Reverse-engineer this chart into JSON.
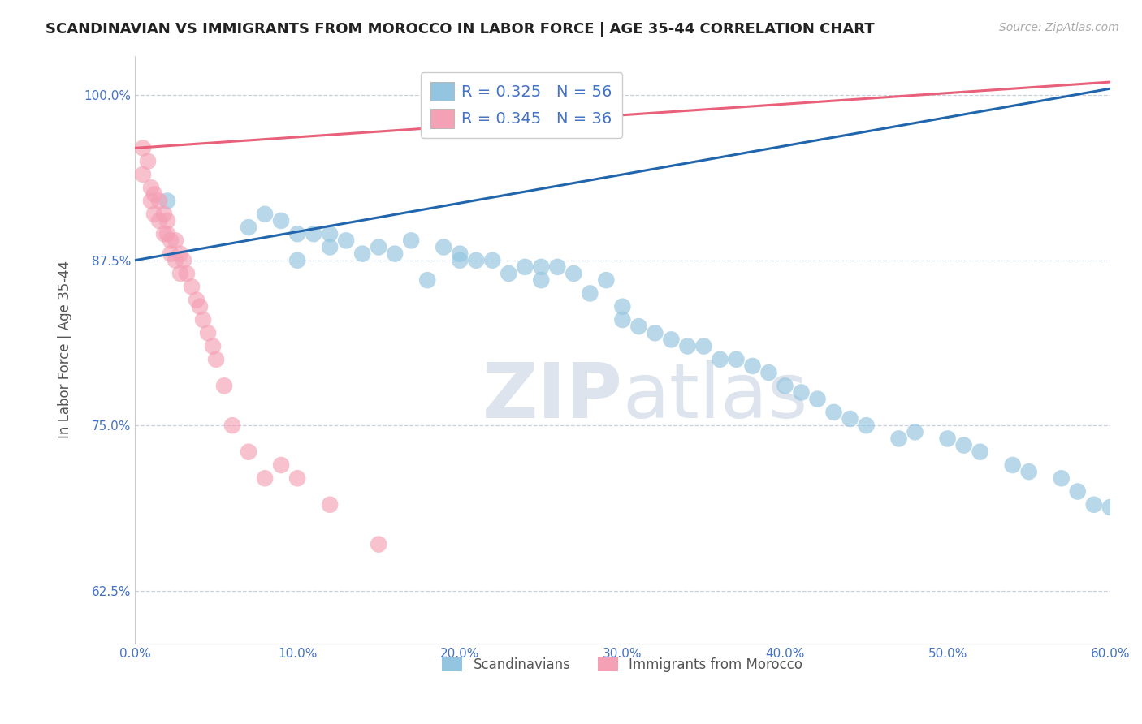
{
  "title": "SCANDINAVIAN VS IMMIGRANTS FROM MOROCCO IN LABOR FORCE | AGE 35-44 CORRELATION CHART",
  "source": "Source: ZipAtlas.com",
  "ylabel": "In Labor Force | Age 35-44",
  "xlim": [
    0.0,
    0.6
  ],
  "ylim": [
    0.585,
    1.03
  ],
  "yticks": [
    0.625,
    0.75,
    0.875,
    1.0
  ],
  "ytick_labels": [
    "62.5%",
    "75.0%",
    "87.5%",
    "100.0%"
  ],
  "xticks": [
    0.0,
    0.1,
    0.2,
    0.3,
    0.4,
    0.5,
    0.6
  ],
  "xtick_labels": [
    "0.0%",
    "10.0%",
    "20.0%",
    "30.0%",
    "40.0%",
    "50.0%",
    "60.0%"
  ],
  "blue_R": 0.325,
  "blue_N": 56,
  "pink_R": 0.345,
  "pink_N": 36,
  "blue_color": "#93c4e0",
  "pink_color": "#f4a0b5",
  "blue_line_color": "#2166ac",
  "pink_line_color": "#e8607a",
  "tick_color": "#4472c4",
  "grid_color": "#c8d0dc",
  "title_color": "#222222",
  "watermark_color": "#dde4ee",
  "blue_x": [
    0.02,
    0.07,
    0.08,
    0.09,
    0.1,
    0.1,
    0.11,
    0.12,
    0.12,
    0.13,
    0.14,
    0.15,
    0.16,
    0.17,
    0.18,
    0.19,
    0.2,
    0.2,
    0.21,
    0.22,
    0.23,
    0.24,
    0.25,
    0.25,
    0.26,
    0.27,
    0.28,
    0.29,
    0.3,
    0.3,
    0.31,
    0.32,
    0.33,
    0.34,
    0.35,
    0.36,
    0.37,
    0.38,
    0.39,
    0.4,
    0.41,
    0.42,
    0.43,
    0.44,
    0.45,
    0.47,
    0.48,
    0.5,
    0.51,
    0.52,
    0.54,
    0.55,
    0.57,
    0.58,
    0.59,
    0.6
  ],
  "blue_y": [
    0.92,
    0.9,
    0.91,
    0.905,
    0.895,
    0.875,
    0.895,
    0.895,
    0.885,
    0.89,
    0.88,
    0.885,
    0.88,
    0.89,
    0.86,
    0.885,
    0.88,
    0.875,
    0.875,
    0.875,
    0.865,
    0.87,
    0.87,
    0.86,
    0.87,
    0.865,
    0.85,
    0.86,
    0.84,
    0.83,
    0.825,
    0.82,
    0.815,
    0.81,
    0.81,
    0.8,
    0.8,
    0.795,
    0.79,
    0.78,
    0.775,
    0.77,
    0.76,
    0.755,
    0.75,
    0.74,
    0.745,
    0.74,
    0.735,
    0.73,
    0.72,
    0.715,
    0.71,
    0.7,
    0.69,
    0.688
  ],
  "pink_x": [
    0.005,
    0.005,
    0.008,
    0.01,
    0.01,
    0.012,
    0.012,
    0.015,
    0.015,
    0.018,
    0.018,
    0.02,
    0.02,
    0.022,
    0.022,
    0.025,
    0.025,
    0.028,
    0.028,
    0.03,
    0.032,
    0.035,
    0.038,
    0.04,
    0.042,
    0.045,
    0.048,
    0.05,
    0.055,
    0.06,
    0.07,
    0.08,
    0.09,
    0.1,
    0.12,
    0.15
  ],
  "pink_y": [
    0.96,
    0.94,
    0.95,
    0.93,
    0.92,
    0.925,
    0.91,
    0.92,
    0.905,
    0.91,
    0.895,
    0.905,
    0.895,
    0.89,
    0.88,
    0.89,
    0.875,
    0.88,
    0.865,
    0.875,
    0.865,
    0.855,
    0.845,
    0.84,
    0.83,
    0.82,
    0.81,
    0.8,
    0.78,
    0.75,
    0.73,
    0.71,
    0.72,
    0.71,
    0.69,
    0.66
  ],
  "blue_trend_x": [
    0.0,
    0.6
  ],
  "blue_trend_y": [
    0.875,
    1.005
  ],
  "pink_trend_x": [
    0.0,
    0.6
  ],
  "pink_trend_y": [
    0.96,
    1.01
  ]
}
